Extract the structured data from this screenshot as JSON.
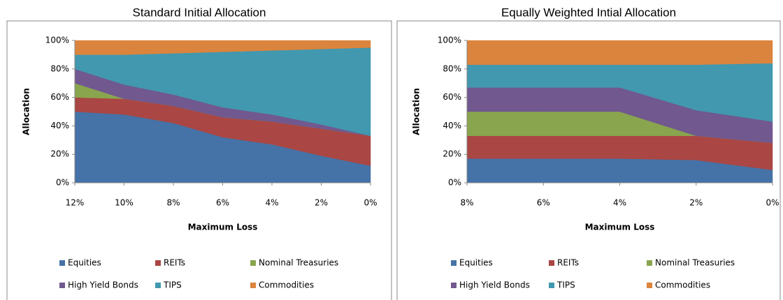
{
  "chart_data": [
    {
      "type": "area",
      "stacked": true,
      "title": "Standard Initial Allocation",
      "xlabel": "Maximum Loss",
      "ylabel": "Allocation",
      "x": [
        12,
        10,
        8,
        6,
        4,
        2,
        0
      ],
      "xlim": [
        12,
        0
      ],
      "xticks": [
        {
          "value": 12,
          "label": "12%"
        },
        {
          "value": 10,
          "label": "10%"
        },
        {
          "value": 8,
          "label": "8%"
        },
        {
          "value": 6,
          "label": "6%"
        },
        {
          "value": 4,
          "label": "4%"
        },
        {
          "value": 2,
          "label": "2%"
        },
        {
          "value": 0,
          "label": "0%"
        }
      ],
      "ylim": [
        0,
        100
      ],
      "yticks": [
        {
          "value": 0,
          "label": "0%"
        },
        {
          "value": 20,
          "label": "20%"
        },
        {
          "value": 40,
          "label": "40%"
        },
        {
          "value": 60,
          "label": "60%"
        },
        {
          "value": 80,
          "label": "80%"
        },
        {
          "value": 100,
          "label": "100%"
        }
      ],
      "legend": "bottom",
      "series": [
        {
          "name": "Equities",
          "color": "#4572a7",
          "values": [
            50,
            48,
            42,
            32,
            27,
            19,
            12
          ]
        },
        {
          "name": "REITs",
          "color": "#aa4643",
          "values": [
            10,
            11,
            12,
            14,
            16,
            19,
            21
          ]
        },
        {
          "name": "Nominal Treasuries",
          "color": "#89a54e",
          "values": [
            10,
            0,
            0,
            0,
            0,
            0,
            0
          ]
        },
        {
          "name": "High Yield Bonds",
          "color": "#71588f",
          "values": [
            10,
            10,
            8,
            7,
            5,
            3,
            0
          ]
        },
        {
          "name": "TIPS",
          "color": "#4198af",
          "values": [
            10,
            21,
            29,
            39,
            45,
            53,
            62
          ]
        },
        {
          "name": "Commodities",
          "color": "#db843d",
          "values": [
            10,
            10,
            9,
            8,
            7,
            6,
            5
          ]
        }
      ]
    },
    {
      "type": "area",
      "stacked": true,
      "title": "Equally Weighted Intial Allocation",
      "xlabel": "Maximum Loss",
      "ylabel": "Allocation",
      "x": [
        8,
        6,
        4,
        2,
        0
      ],
      "xlim": [
        8,
        0
      ],
      "xticks": [
        {
          "value": 8,
          "label": "8%"
        },
        {
          "value": 6,
          "label": "6%"
        },
        {
          "value": 4,
          "label": "4%"
        },
        {
          "value": 2,
          "label": "2%"
        },
        {
          "value": 0,
          "label": "0%"
        }
      ],
      "ylim": [
        0,
        100
      ],
      "yticks": [
        {
          "value": 0,
          "label": "0%"
        },
        {
          "value": 20,
          "label": "20%"
        },
        {
          "value": 40,
          "label": "40%"
        },
        {
          "value": 60,
          "label": "60%"
        },
        {
          "value": 80,
          "label": "80%"
        },
        {
          "value": 100,
          "label": "100%"
        }
      ],
      "legend": "bottom",
      "series": [
        {
          "name": "Equities",
          "color": "#4572a7",
          "values": [
            17,
            17,
            17,
            16,
            9
          ]
        },
        {
          "name": "REITs",
          "color": "#aa4643",
          "values": [
            16,
            16,
            16,
            17,
            19
          ]
        },
        {
          "name": "Nominal Treasuries",
          "color": "#89a54e",
          "values": [
            17,
            17,
            17,
            0,
            0
          ]
        },
        {
          "name": "High Yield Bonds",
          "color": "#71588f",
          "values": [
            17,
            17,
            17,
            18,
            15
          ]
        },
        {
          "name": "TIPS",
          "color": "#4198af",
          "values": [
            16,
            16,
            16,
            32,
            41
          ]
        },
        {
          "name": "Commodities",
          "color": "#db843d",
          "values": [
            17,
            17,
            17,
            17,
            16
          ]
        }
      ]
    }
  ]
}
